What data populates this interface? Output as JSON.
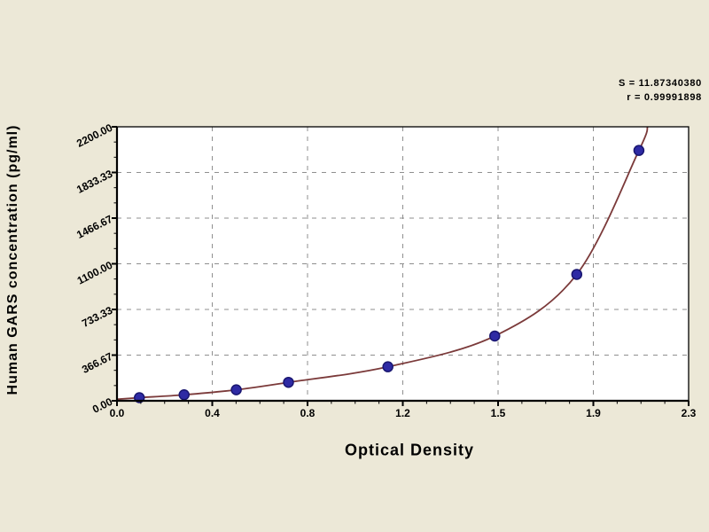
{
  "window": {
    "background_color": "#ECE8D7",
    "plot_background_color": "#FFFFFF"
  },
  "annotation": {
    "s_value": "S = 11.87340380",
    "r_value": "r = 0.99991898"
  },
  "chart_data": {
    "type": "scatter",
    "title": "",
    "xlabel": "Optical Density",
    "ylabel": "Human GARS concentration (pg/ml)",
    "xlim": [
      0,
      2.3
    ],
    "ylim": [
      0,
      2200
    ],
    "x_tick_labels": [
      "0.0",
      "0.4",
      "0.8",
      "1.2",
      "1.5",
      "1.9",
      "2.3"
    ],
    "y_tick_labels": [
      "0.00",
      "366.67",
      "733.33",
      "1100.00",
      "1466.67",
      "1833.33",
      "2200.00"
    ],
    "x_minor_ticks_per_interval": 3,
    "y_minor_ticks_per_interval": 2,
    "grid": "dashed",
    "legend": "none",
    "series": [
      {
        "name": "standard-points",
        "type": "scatter",
        "marker": "circle",
        "color": "#2E2AA4",
        "edge_color": "#191670",
        "points": [
          [
            0.09,
            25
          ],
          [
            0.27,
            48
          ],
          [
            0.48,
            88
          ],
          [
            0.69,
            148
          ],
          [
            1.09,
            273
          ],
          [
            1.52,
            520
          ],
          [
            1.85,
            1015
          ],
          [
            2.1,
            2010
          ]
        ]
      },
      {
        "name": "fitted-curve",
        "type": "line",
        "color": "#7B3A3A",
        "start_point": [
          0,
          12
        ],
        "end_point": [
          2.135,
          2200
        ]
      }
    ],
    "grid_color": "#8F8F8F",
    "axis_color": "#000000"
  }
}
